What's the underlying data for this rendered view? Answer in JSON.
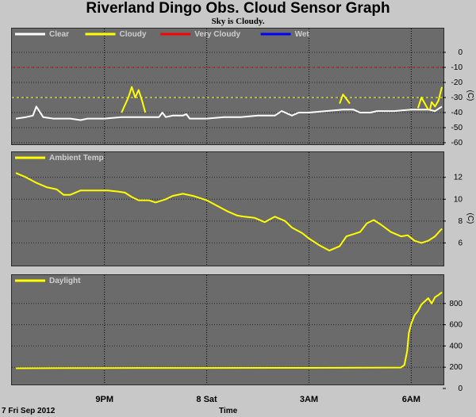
{
  "title": "Riverland Dingo Obs. Cloud Sensor Graph",
  "subtitle": "Sky is Cloudy.",
  "date_label": "7 Fri Sep 2012",
  "xlabel": "Time",
  "colors": {
    "background": "#c8c8c8",
    "panel": "#6b6b6b",
    "clear": "#ffffff",
    "cloudy": "#ffff00",
    "very_cloudy": "#ff0000",
    "wet": "#0000ff"
  },
  "x_axis": {
    "range_hours": [
      18.4,
      30.9
    ],
    "ticks": [
      {
        "label": "9PM",
        "hour": 21
      },
      {
        "label": "8 Sat",
        "hour": 24
      },
      {
        "label": "3AM",
        "hour": 27
      },
      {
        "label": "6AM",
        "hour": 30
      }
    ]
  },
  "chart_data": [
    {
      "type": "line",
      "name": "cloud",
      "ylabel": "(C)",
      "ylim": [
        -60,
        10
      ],
      "yticks": [
        0,
        -10,
        -20,
        -30,
        -40,
        -50,
        -60
      ],
      "grid": true,
      "legend": [
        {
          "label": "Clear",
          "color": "#ffffff"
        },
        {
          "label": "Cloudy",
          "color": "#ffff00"
        },
        {
          "label": "Very Cloudy",
          "color": "#ff0000"
        },
        {
          "label": "Wet",
          "color": "#0000ff"
        }
      ],
      "thresholds": [
        {
          "value": -10,
          "color": "#ff0000"
        },
        {
          "value": -30,
          "color": "#ffff00"
        }
      ],
      "series": [
        {
          "name": "Clear",
          "color": "#ffffff",
          "x": [
            18.4,
            18.7,
            18.9,
            19.0,
            19.2,
            19.5,
            20.0,
            20.3,
            20.5,
            20.8,
            21.0,
            21.5,
            22.0,
            22.6,
            22.7,
            22.8,
            23.0,
            23.3,
            23.4,
            23.5,
            24.0,
            24.5,
            25.0,
            25.5,
            26.0,
            26.2,
            26.5,
            26.7,
            27.0,
            27.5,
            28.0,
            28.3,
            28.5,
            28.8,
            29.0,
            29.5,
            30.0,
            30.5,
            30.7,
            30.9
          ],
          "y": [
            -44,
            -43,
            -42,
            -36,
            -43,
            -44,
            -44,
            -45,
            -44,
            -44,
            -44,
            -43,
            -43,
            -43,
            -40,
            -43,
            -42,
            -42,
            -41,
            -44,
            -44,
            -43,
            -43,
            -42,
            -42,
            -39,
            -42,
            -40,
            -40,
            -39,
            -38,
            -38,
            -40,
            -40,
            -39,
            -39,
            -38,
            -38,
            -39,
            -36
          ]
        },
        {
          "name": "Cloudy",
          "color": "#ffff00",
          "x": [
            21.5,
            21.7,
            21.8,
            21.9,
            22.0,
            22.1,
            22.2
          ],
          "y": [
            -40,
            -30,
            -23,
            -30,
            -25,
            -32,
            -40
          ]
        },
        {
          "name": "Cloudy",
          "color": "#ffff00",
          "x": [
            27.9,
            28.0,
            28.1,
            28.2
          ],
          "y": [
            -34,
            -28,
            -31,
            -34
          ]
        },
        {
          "name": "Cloudy",
          "color": "#ffff00",
          "x": [
            30.2,
            30.3,
            30.4,
            30.5
          ],
          "y": [
            -37,
            -30,
            -34,
            -38
          ]
        },
        {
          "name": "Cloudy",
          "color": "#ffff00",
          "x": [
            30.55,
            30.6,
            30.7,
            30.8,
            30.9
          ],
          "y": [
            -38,
            -33,
            -36,
            -32,
            -23
          ]
        }
      ]
    },
    {
      "type": "line",
      "name": "ambient",
      "ylabel": "(C)",
      "ylim": [
        4,
        13.5
      ],
      "yticks": [
        12,
        10,
        8,
        6
      ],
      "grid": true,
      "legend": [
        {
          "label": "Ambient Temp",
          "color": "#ffff00"
        }
      ],
      "series": [
        {
          "name": "Ambient Temp",
          "color": "#ffff00",
          "x": [
            18.4,
            18.7,
            19.0,
            19.3,
            19.6,
            19.8,
            20.0,
            20.3,
            20.6,
            20.9,
            21.1,
            21.4,
            21.6,
            21.8,
            22.0,
            22.3,
            22.5,
            22.8,
            23.0,
            23.3,
            23.6,
            24.0,
            24.3,
            24.6,
            24.9,
            25.1,
            25.4,
            25.7,
            26.0,
            26.3,
            26.5,
            26.8,
            27.0,
            27.3,
            27.6,
            27.9,
            28.1,
            28.3,
            28.5,
            28.7,
            28.9,
            29.1,
            29.4,
            29.7,
            29.9,
            30.1,
            30.3,
            30.5,
            30.7,
            30.9
          ],
          "y": [
            12.4,
            12.0,
            11.5,
            11.1,
            10.9,
            10.4,
            10.4,
            10.8,
            10.8,
            10.8,
            10.8,
            10.7,
            10.6,
            10.2,
            9.9,
            9.9,
            9.7,
            10.0,
            10.3,
            10.5,
            10.3,
            9.9,
            9.4,
            8.9,
            8.5,
            8.4,
            8.3,
            7.9,
            8.4,
            8.0,
            7.4,
            6.9,
            6.4,
            5.8,
            5.3,
            5.7,
            6.6,
            6.8,
            7.0,
            7.8,
            8.1,
            7.7,
            7.0,
            6.6,
            6.7,
            6.2,
            6.0,
            6.2,
            6.6,
            7.3
          ]
        }
      ]
    },
    {
      "type": "line",
      "name": "daylight",
      "ylabel": "",
      "ylim": [
        0,
        1000
      ],
      "yticks": [
        800,
        600,
        400,
        200,
        0
      ],
      "grid": true,
      "legend": [
        {
          "label": "Daylight",
          "color": "#ffff00"
        }
      ],
      "series": [
        {
          "name": "Daylight",
          "color": "#ffff00",
          "x": [
            18.4,
            20.0,
            22.0,
            24.0,
            26.0,
            28.0,
            29.0,
            29.7,
            29.8,
            29.88,
            29.93,
            30.0,
            30.1,
            30.2,
            30.3,
            30.4,
            30.5,
            30.6,
            30.7,
            30.8,
            30.9
          ],
          "y": [
            190,
            192,
            193,
            193,
            194,
            195,
            196,
            197,
            220,
            350,
            520,
            610,
            690,
            730,
            790,
            820,
            850,
            800,
            860,
            880,
            905
          ]
        }
      ]
    }
  ]
}
